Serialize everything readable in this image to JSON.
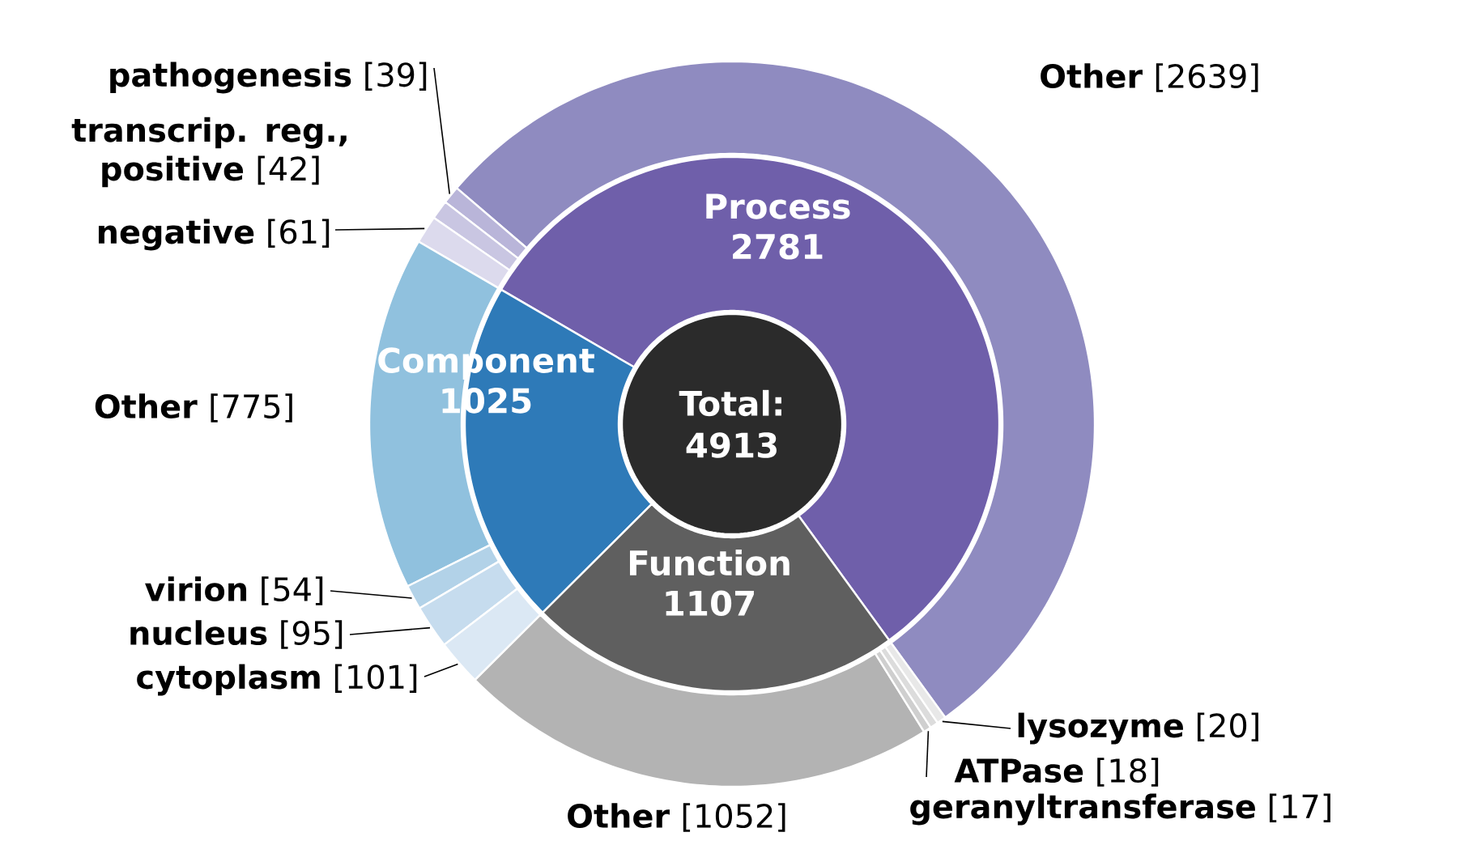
{
  "chart_data": [
    {
      "type": "donut",
      "categories": [
        "Process",
        "Component",
        "Function"
      ],
      "values": [
        2781,
        1025,
        1107
      ],
      "colors": [
        "#6f5faa",
        "#2e7ab8",
        "#5f5f5f"
      ],
      "data_labels": true,
      "annotations": [
        "Total:",
        "4913"
      ]
    },
    {
      "type": "donut",
      "categories": [
        "Other",
        "pathogenesis",
        "transcrip. reg., positive",
        "negative",
        "Other",
        "virion",
        "nucleus",
        "cytoplasm",
        "Other",
        "geranyltransferase",
        "ATPase",
        "lysozyme"
      ],
      "values": [
        2639,
        39,
        42,
        61,
        775,
        54,
        95,
        101,
        1052,
        17,
        18,
        20
      ],
      "colors": [
        "#8f8bc0",
        "#b9b5d9",
        "#c9c6e2",
        "#dcdaed",
        "#90c1de",
        "#b2d2e8",
        "#c6dcee",
        "#dbe8f4",
        "#b3b3b3",
        "#cfcfcf",
        "#dcdcdc",
        "#e8e8e8"
      ],
      "value_labels": [
        "[2639]",
        "[39]",
        "[42]",
        "[61]",
        "[775]",
        "[54]",
        "[95]",
        "[101]",
        "[1052]",
        "[17]",
        "[18]",
        "[20]"
      ]
    }
  ]
}
